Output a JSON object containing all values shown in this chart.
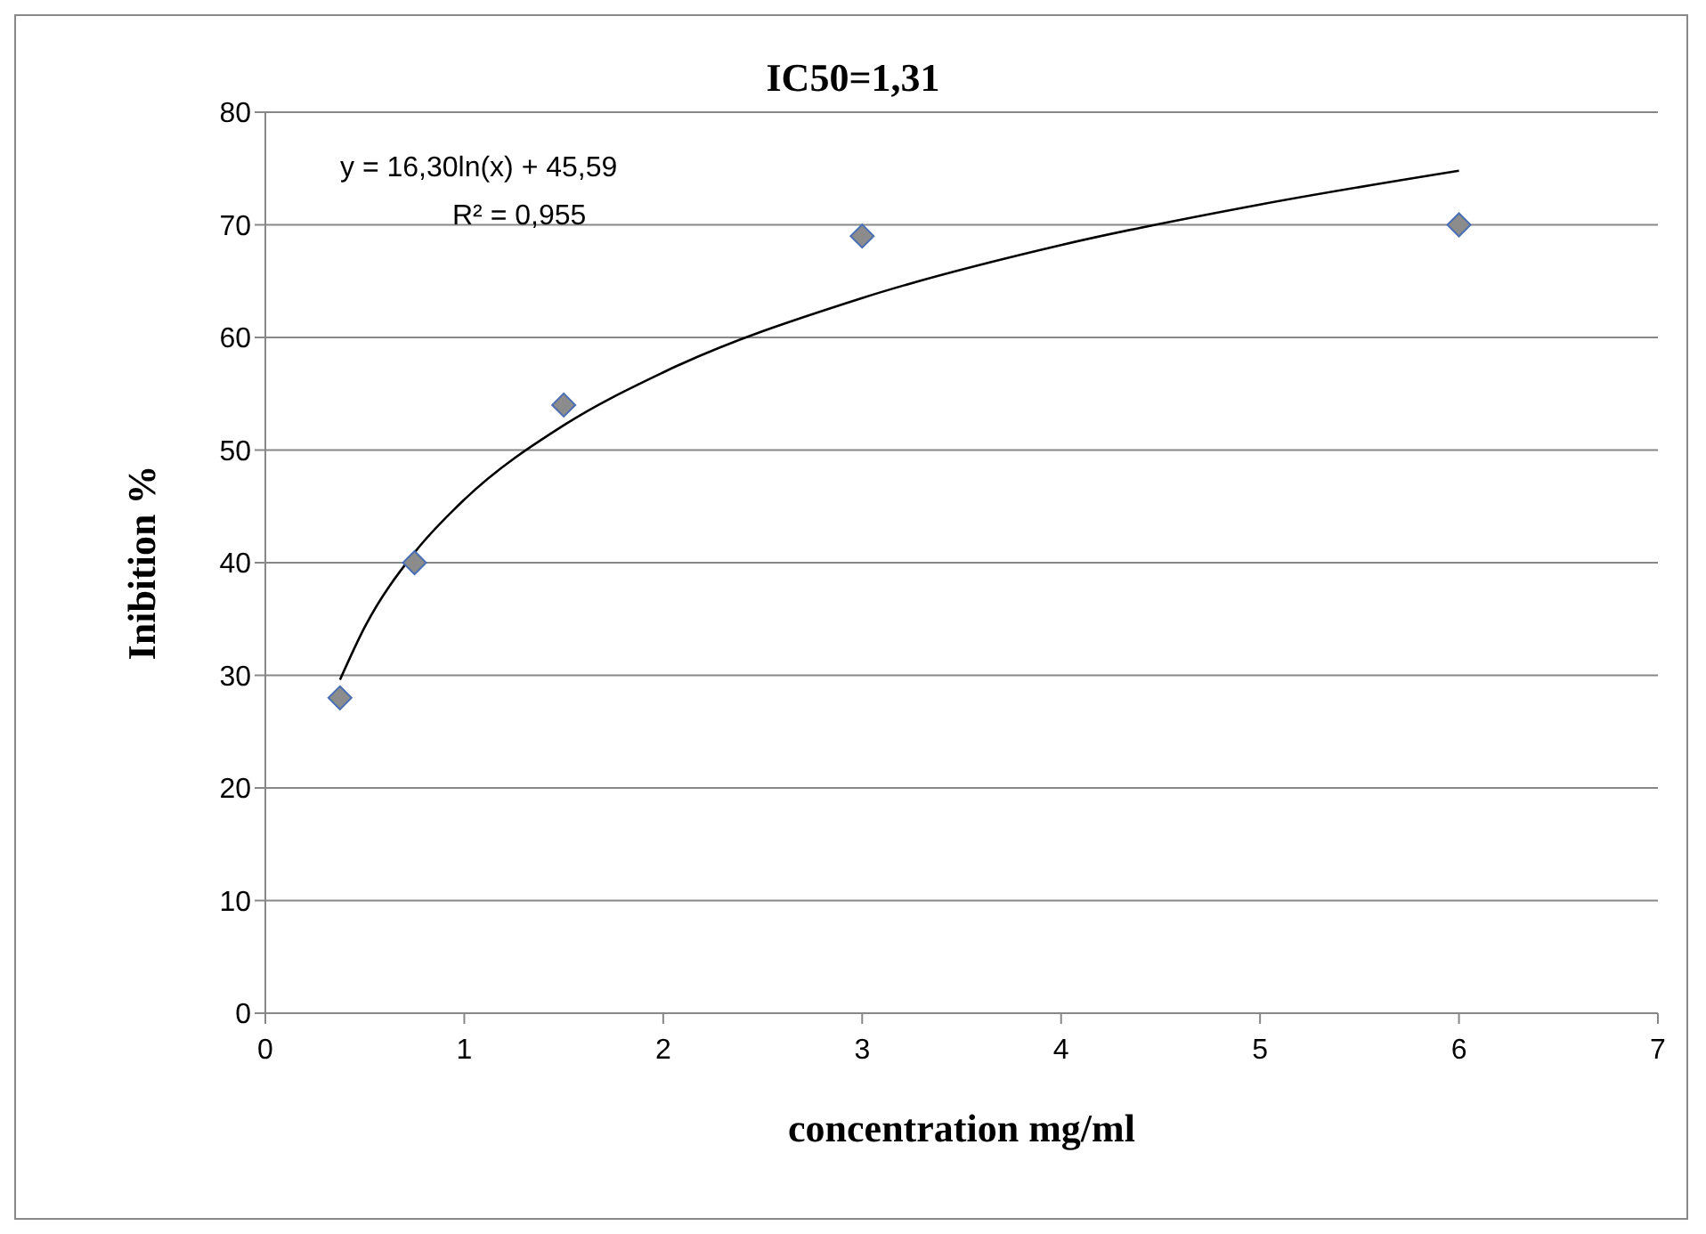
{
  "chart_data": {
    "type": "scatter",
    "title": "IC50=1,31",
    "xlabel": "concentration mg/ml",
    "ylabel": "Inibition %",
    "annotations": [
      "y = 16,30ln(x) + 45,59",
      "R² = 0,955"
    ],
    "xlim": [
      0,
      7
    ],
    "xticks": [
      0,
      1,
      2,
      3,
      4,
      5,
      6,
      7
    ],
    "ylim": [
      0,
      80
    ],
    "yticks": [
      0,
      10,
      20,
      30,
      40,
      50,
      60,
      70,
      80
    ],
    "grid": "y",
    "marker": "diamond",
    "series": [
      {
        "color": "#8c8c8c",
        "x": [
          0.375,
          0.75,
          1.5,
          3,
          6
        ],
        "values": [
          28,
          40,
          54,
          69,
          70
        ]
      },
      {
        "type": "line",
        "color": "#000000",
        "line_style": "solid",
        "marker": "none",
        "x": [
          0.375,
          0.5,
          0.75,
          1,
          1.5,
          2,
          3,
          4,
          5,
          6
        ],
        "values": [
          29.6,
          34.3,
          40.9,
          45.6,
          52.2,
          56.9,
          63.5,
          68.2,
          71.8,
          74.8
        ]
      }
    ]
  }
}
